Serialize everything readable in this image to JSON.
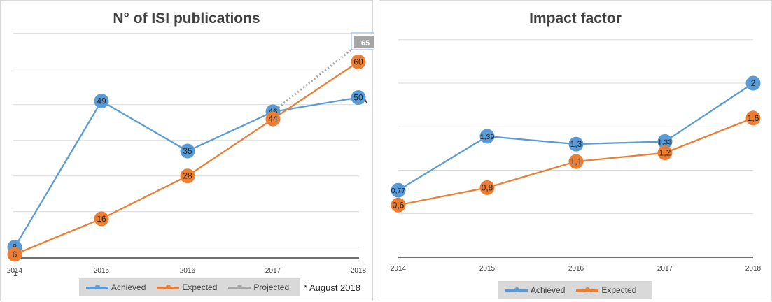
{
  "chart_data": [
    {
      "type": "line",
      "title": "N° of ISI publications",
      "categories": [
        "2014",
        "2015",
        "2016",
        "2017",
        "2018"
      ],
      "series": [
        {
          "name": "Achieved",
          "values": [
            8,
            49,
            35,
            46,
            50
          ],
          "labels": [
            "8",
            "49",
            "35",
            "46",
            "50"
          ],
          "color": "#5b9bd5"
        },
        {
          "name": "Expected",
          "values": [
            6,
            16,
            28,
            44,
            60
          ],
          "labels": [
            "6",
            "16",
            "28",
            "44",
            "60"
          ],
          "color": "#ed7d31"
        },
        {
          "name": "Projected",
          "values": [
            null,
            null,
            null,
            46,
            65
          ],
          "labels": [
            null,
            null,
            null,
            null,
            "65"
          ],
          "color": "#a5a5a5"
        }
      ],
      "ylim": [
        5,
        70
      ],
      "grid": true,
      "legend_position": "bottom",
      "annotation": "* August 2018",
      "marker_note": "*"
    },
    {
      "type": "line",
      "title": "Impact factor",
      "categories": [
        "2014",
        "2015",
        "2016",
        "2017",
        "2018"
      ],
      "series": [
        {
          "name": "Achieved",
          "values": [
            0.77,
            1.39,
            1.3,
            1.33,
            2
          ],
          "labels": [
            "0,77",
            "1,39",
            "1,3",
            "1,33",
            "2"
          ],
          "color": "#5b9bd5"
        },
        {
          "name": "Expected",
          "values": [
            0.6,
            0.8,
            1.1,
            1.2,
            1.6
          ],
          "labels": [
            "0,6",
            "0,8",
            "1,1",
            "1,2",
            "1,6"
          ],
          "color": "#ed7d31"
        }
      ],
      "ylim": [
        0,
        2.5
      ],
      "grid": true,
      "legend_position": "bottom"
    }
  ],
  "page_number": "1"
}
